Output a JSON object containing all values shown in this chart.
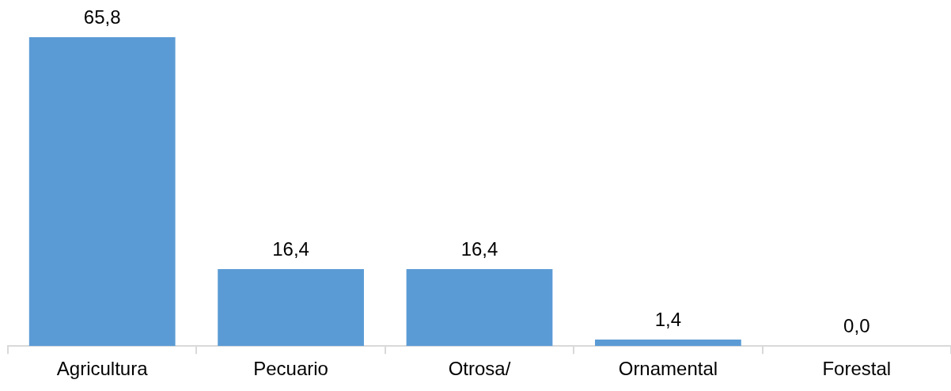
{
  "chart_data": {
    "type": "bar",
    "categories": [
      "Agricultura",
      "Pecuario",
      "Otrosa/",
      "Ornamental",
      "Forestal"
    ],
    "values": [
      65.8,
      16.4,
      16.4,
      1.4,
      0.0
    ],
    "color": "#5b9bd5",
    "value_labels": [
      "65,8",
      "16,4",
      "16,4",
      "1,4",
      "0,0"
    ]
  }
}
